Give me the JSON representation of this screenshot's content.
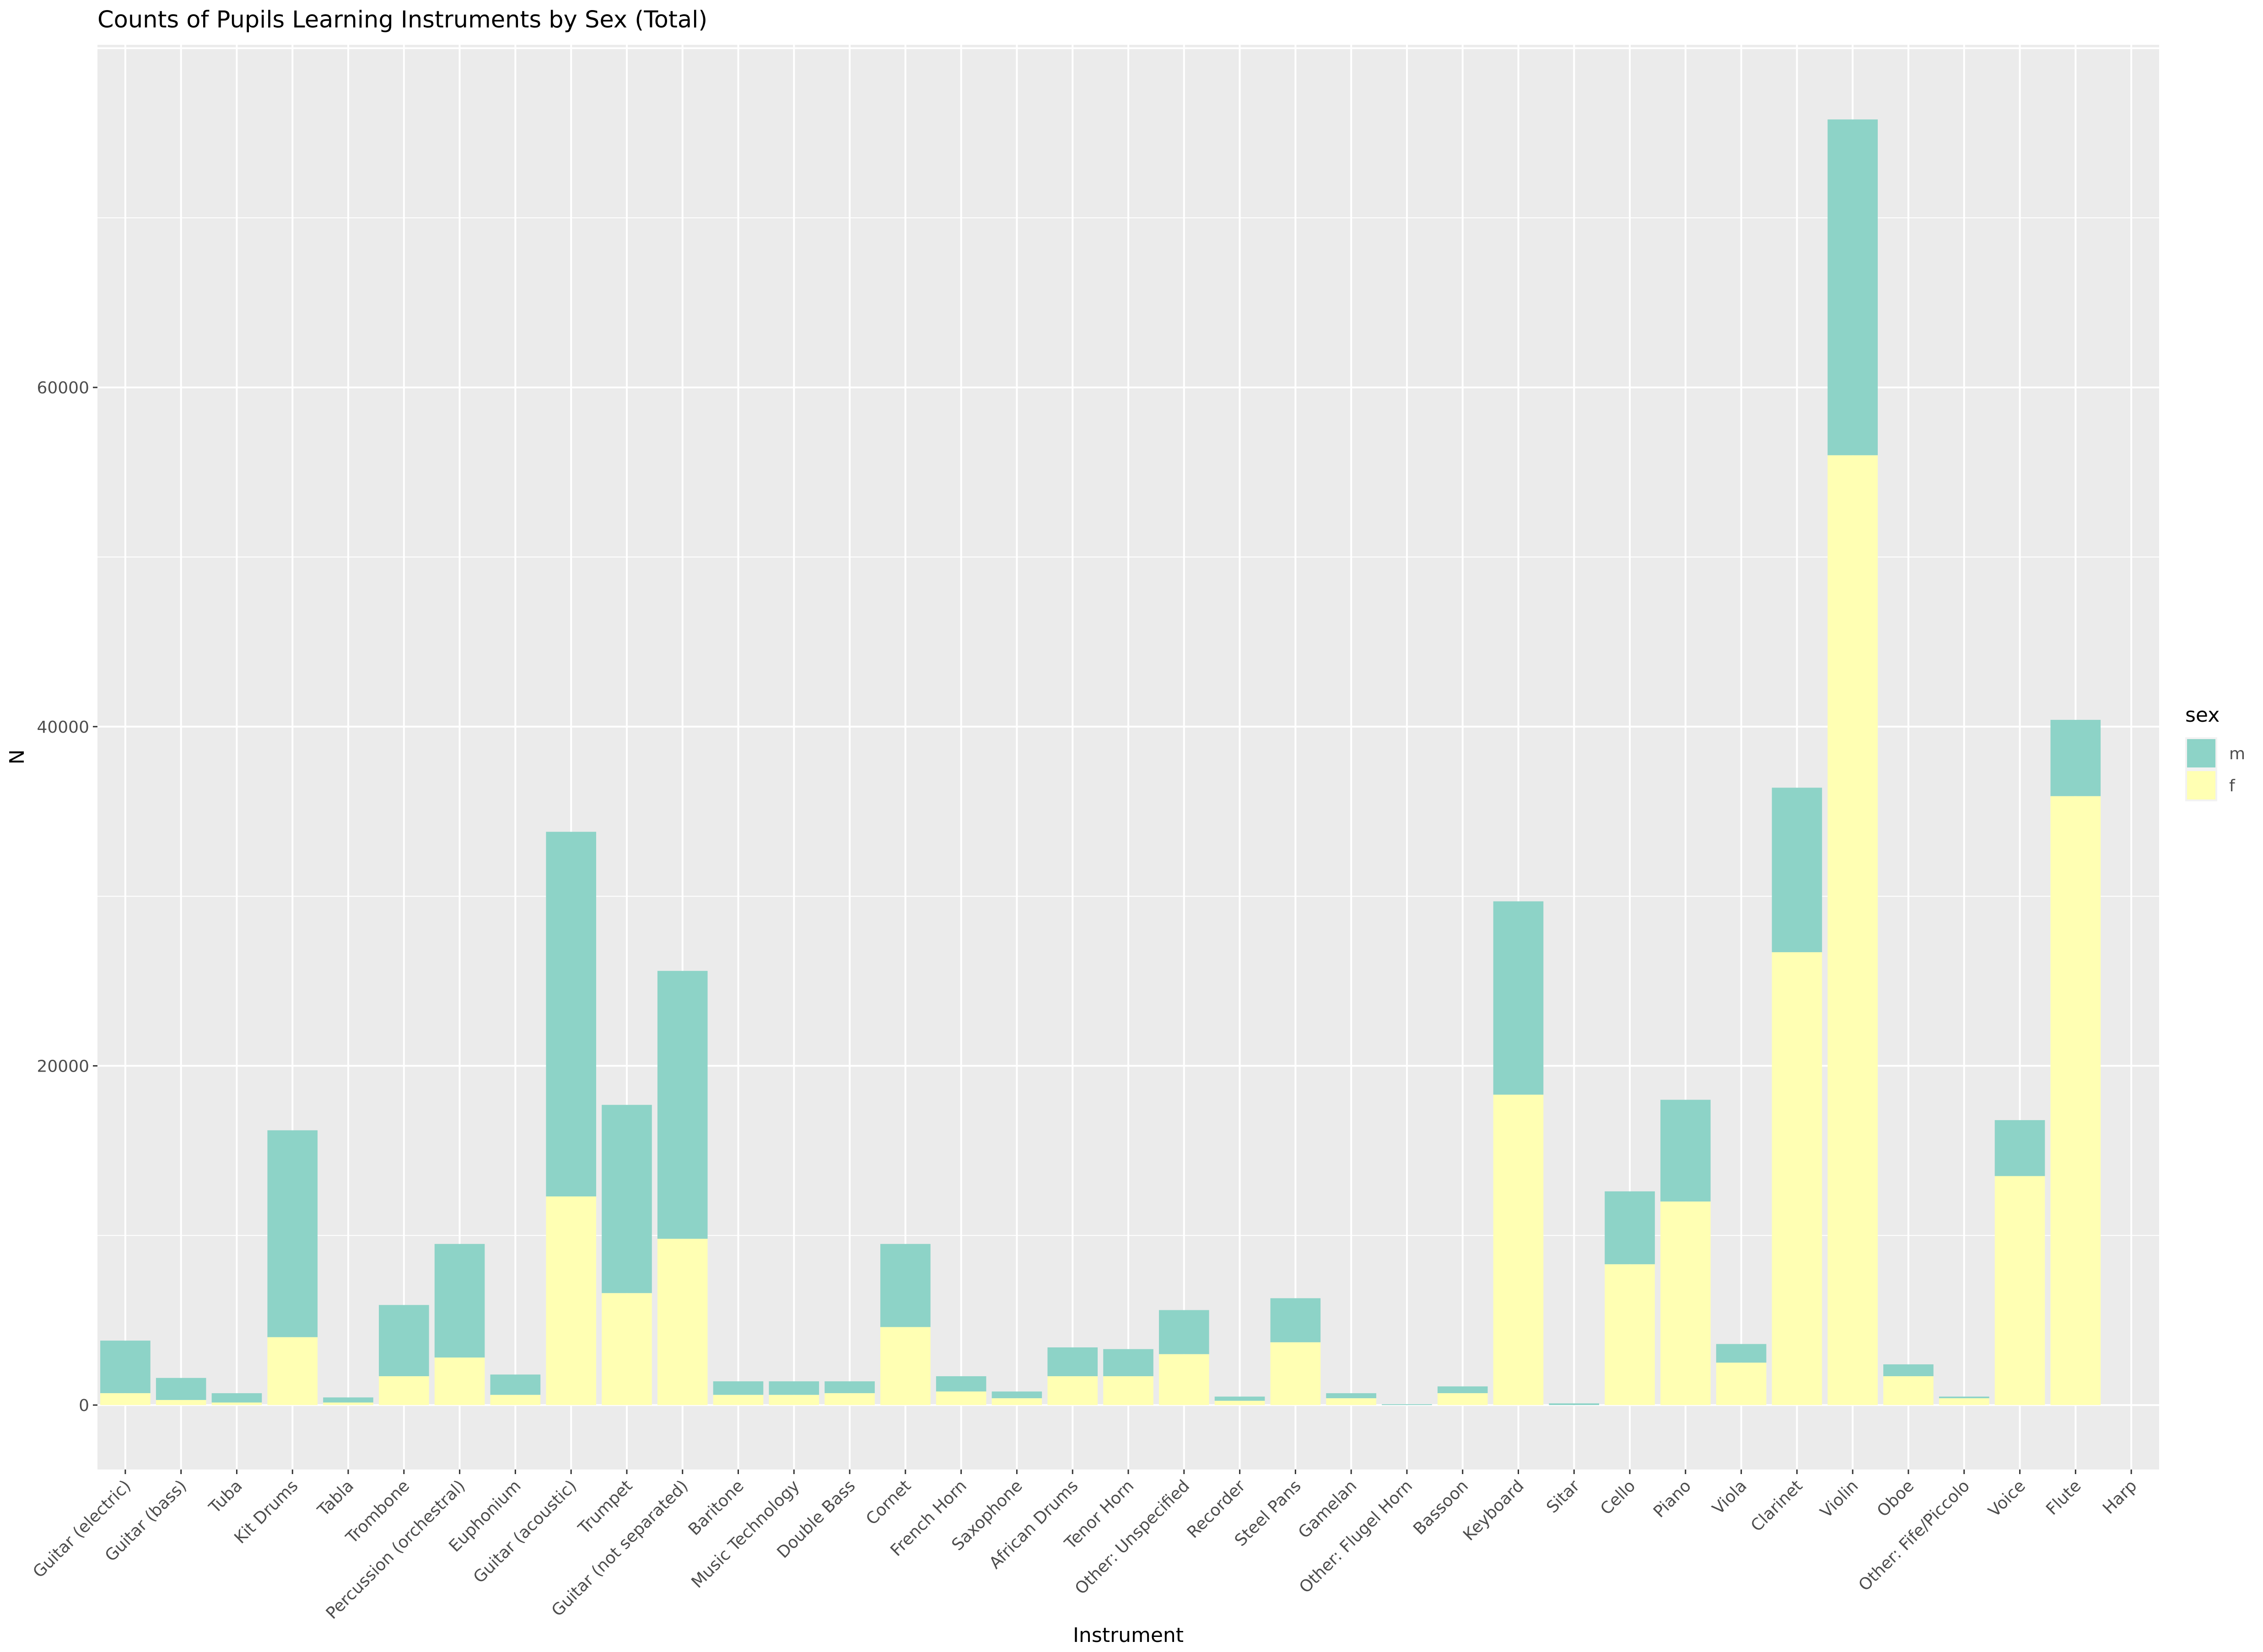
{
  "chart_data": {
    "type": "bar",
    "stacked": true,
    "title": "Counts of Pupils Learning Instruments by Sex (Total)",
    "xlabel": "Instrument",
    "ylabel": "N",
    "ylim": [
      -3800,
      80200
    ],
    "yticks": [
      0,
      20000,
      40000,
      60000
    ],
    "grid": true,
    "legend": {
      "title": "sex",
      "placement": "right"
    },
    "categories": [
      "Guitar (electric)",
      "Guitar (bass)",
      "Tuba",
      "Kit Drums",
      "Tabla",
      "Trombone",
      "Percussion (orchestral)",
      "Euphonium",
      "Guitar (acoustic)",
      "Trumpet",
      "Guitar (not separated)",
      "Baritone",
      "Music Technology",
      "Double Bass",
      "Cornet",
      "French Horn",
      "Saxophone",
      "African Drums",
      "Tenor Horn",
      "Other: Unspecified",
      "Recorder",
      "Steel Pans",
      "Gamelan",
      "Other: Flugel Horn",
      "Bassoon",
      "Keyboard",
      "Sitar",
      "Cello",
      "Piano",
      "Viola",
      "Clarinet",
      "Violin",
      "Oboe",
      "Other: Fife/Piccolo",
      "Voice",
      "Flute",
      "Harp"
    ],
    "series": [
      {
        "name": "f",
        "color": "#FFFFB3",
        "values": [
          700,
          300,
          150,
          4000,
          150,
          1700,
          2800,
          600,
          12300,
          6600,
          9800,
          600,
          600,
          700,
          4600,
          800,
          400,
          1700,
          1700,
          3000,
          250,
          3700,
          400,
          0,
          700,
          18300,
          0,
          8300,
          12000,
          2500,
          26700,
          56000,
          1700,
          400,
          13500,
          35900,
          0
        ]
      },
      {
        "name": "m",
        "color": "#8DD3C7",
        "values": [
          3100,
          1300,
          550,
          12200,
          300,
          4200,
          6700,
          1200,
          21500,
          11100,
          15800,
          800,
          800,
          700,
          4900,
          900,
          400,
          1700,
          1600,
          2600,
          250,
          2600,
          300,
          50,
          400,
          11400,
          100,
          4300,
          6000,
          1100,
          9700,
          19800,
          700,
          100,
          3300,
          4500,
          0
        ]
      }
    ],
    "legend_order": [
      "m",
      "f"
    ]
  }
}
